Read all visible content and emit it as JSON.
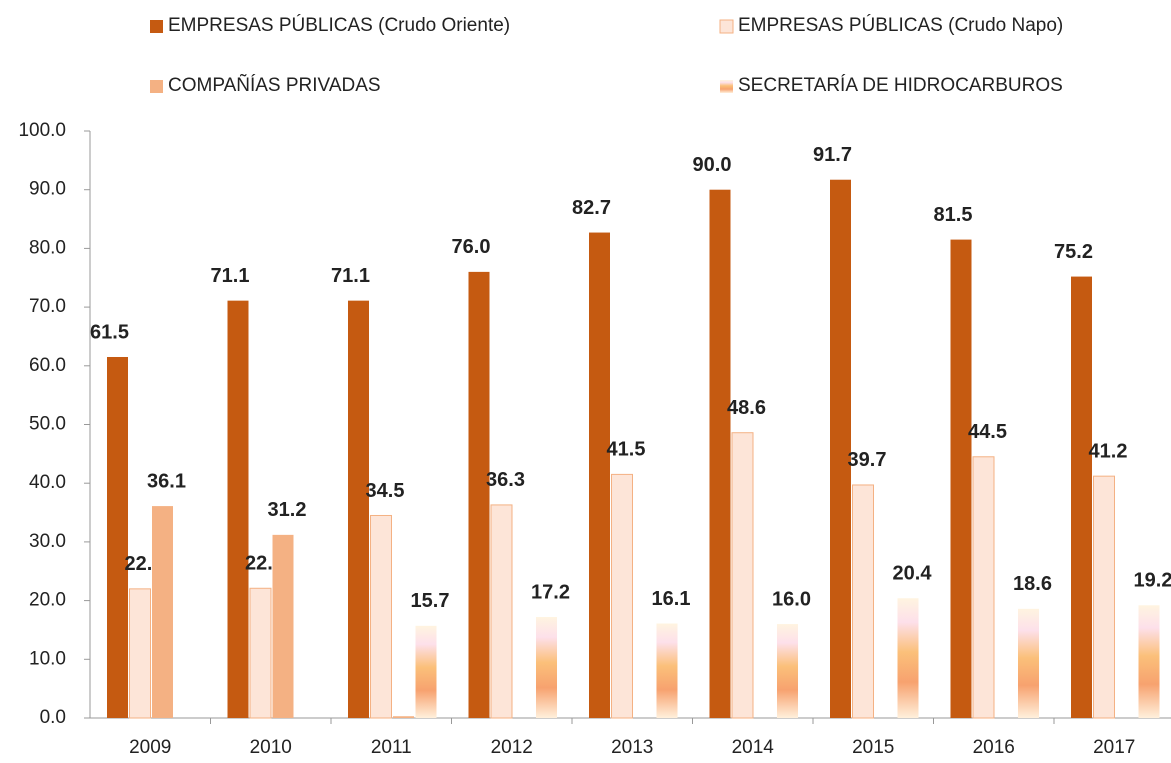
{
  "chart_data": {
    "type": "bar",
    "categories": [
      "2009",
      "2010",
      "2011",
      "2012",
      "2013",
      "2014",
      "2015",
      "2016",
      "2017"
    ],
    "series": [
      {
        "name": "EMPRESAS PÚBLICAS (Crudo Oriente)",
        "color": "#c55a11",
        "values": [
          61.5,
          71.1,
          71.1,
          76.0,
          82.7,
          90.0,
          91.7,
          81.5,
          75.2
        ],
        "value_labels": [
          "61.5",
          "71.1",
          "71.1",
          "76.0",
          "82.7",
          "90.0",
          "91.7",
          "81.5",
          "75.2"
        ]
      },
      {
        "name": "EMPRESAS PÚBLICAS (Crudo Napo)",
        "color": "#fde5d8",
        "values": [
          22.0,
          22.1,
          34.5,
          36.3,
          41.5,
          48.6,
          39.7,
          44.5,
          41.2
        ],
        "value_labels": [
          "22.0",
          "22.1",
          "34.5",
          "36.3",
          "41.5",
          "48.6",
          "39.7",
          "44.5",
          "41.2"
        ]
      },
      {
        "name": "COMPAÑÍAS PRIVADAS",
        "color": "#f4b183",
        "values": [
          36.1,
          31.2,
          0.3,
          null,
          null,
          null,
          null,
          null,
          null
        ],
        "value_labels": [
          "36.1",
          "31.2",
          null,
          null,
          null,
          null,
          null,
          null,
          null
        ]
      },
      {
        "name": "SECRETARÍA DE HIDROCARBUROS",
        "color": "#f7a26f",
        "values": [
          null,
          null,
          15.7,
          17.2,
          16.1,
          16.0,
          20.4,
          18.6,
          19.2
        ],
        "value_labels": [
          null,
          null,
          "15.7",
          "17.2",
          "16.1",
          "16.0",
          "20.4",
          "18.6",
          "19.2"
        ]
      }
    ],
    "ylim": [
      0,
      100
    ],
    "yticks": [
      {
        "value": 0,
        "label": "0.0"
      },
      {
        "value": 10,
        "label": "10.0"
      },
      {
        "value": 20,
        "label": "20.0"
      },
      {
        "value": 30,
        "label": "30.0"
      },
      {
        "value": 40,
        "label": "40.0"
      },
      {
        "value": 50,
        "label": "50.0"
      },
      {
        "value": 60,
        "label": "60.0"
      },
      {
        "value": 70,
        "label": "70.0"
      },
      {
        "value": 80,
        "label": "80.0"
      },
      {
        "value": 90,
        "label": "90.0"
      },
      {
        "value": 100,
        "label": "100.0"
      }
    ],
    "grid": false,
    "legend": "top"
  }
}
